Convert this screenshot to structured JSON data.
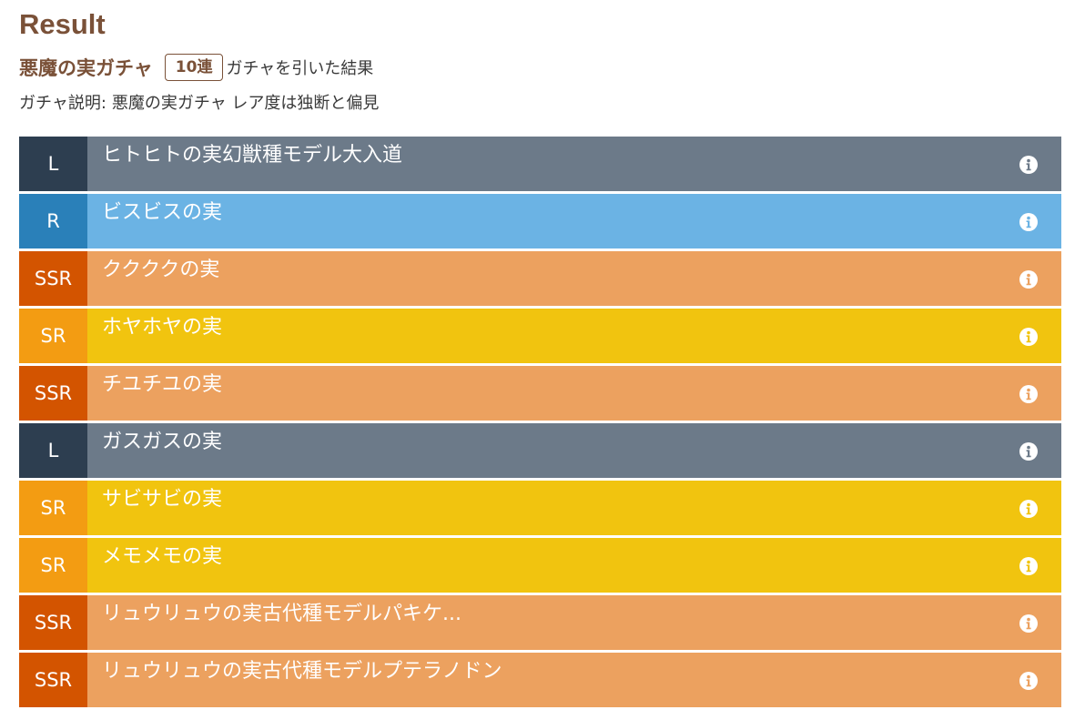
{
  "header": {
    "title": "Result",
    "gacha_name": "悪魔の実ガチャ",
    "count_badge": "10連",
    "suffix": "ガチャを引いた結果"
  },
  "description": {
    "label": "ガチャ説明:",
    "text": "悪魔の実ガチャ レア度は独断と偏見"
  },
  "colors": {
    "title_brown": "#7a5138",
    "L_badge": "#2d3e50",
    "L_body": "#6c7a89",
    "R_badge": "#2a80b9",
    "R_body": "#6bb3e4",
    "SSR_badge": "#d35400",
    "SSR_body": "#eca15f",
    "SR_badge": "#f39c12",
    "SR_body": "#f1c40f"
  },
  "results": [
    {
      "rarity": "L",
      "name": "ヒトヒトの実幻獣種モデル大入道",
      "icon": "info-icon"
    },
    {
      "rarity": "R",
      "name": "ビスビスの実",
      "icon": "info-icon"
    },
    {
      "rarity": "SSR",
      "name": "ククククの実",
      "icon": "info-icon"
    },
    {
      "rarity": "SR",
      "name": "ホヤホヤの実",
      "icon": "info-icon"
    },
    {
      "rarity": "SSR",
      "name": "チユチユの実",
      "icon": "info-icon"
    },
    {
      "rarity": "L",
      "name": "ガスガスの実",
      "icon": "info-icon"
    },
    {
      "rarity": "SR",
      "name": "サビサビの実",
      "icon": "info-icon"
    },
    {
      "rarity": "SR",
      "name": "メモメモの実",
      "icon": "info-icon"
    },
    {
      "rarity": "SSR",
      "name": "リュウリュウの実古代種モデルパキケ...",
      "icon": "info-icon"
    },
    {
      "rarity": "SSR",
      "name": "リュウリュウの実古代種モデルプテラノドン",
      "icon": "info-icon"
    }
  ]
}
